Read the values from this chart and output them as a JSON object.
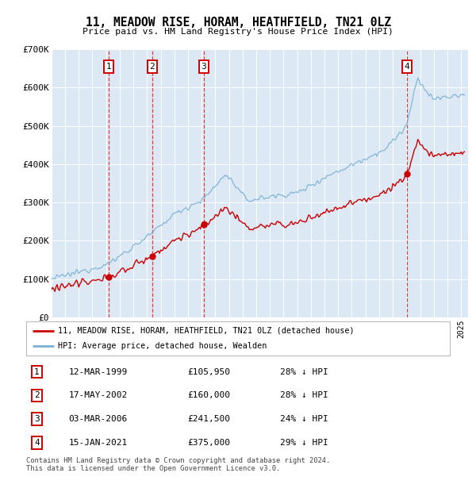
{
  "title": "11, MEADOW RISE, HORAM, HEATHFIELD, TN21 0LZ",
  "subtitle": "Price paid vs. HM Land Registry's House Price Index (HPI)",
  "background_color": "#dce9f5",
  "fig_bg_color": "#ffffff",
  "ylim": [
    0,
    700000
  ],
  "yticks": [
    0,
    100000,
    200000,
    300000,
    400000,
    500000,
    600000,
    700000
  ],
  "ytick_labels": [
    "£0",
    "£100K",
    "£200K",
    "£300K",
    "£400K",
    "£500K",
    "£600K",
    "£700K"
  ],
  "xlim_start": 1995.0,
  "xlim_end": 2025.5,
  "sale_dates": [
    1999.19,
    2002.37,
    2006.17,
    2021.04
  ],
  "sale_prices": [
    105950,
    160000,
    241500,
    375000
  ],
  "sale_labels": [
    "1",
    "2",
    "3",
    "4"
  ],
  "property_line_color": "#cc0000",
  "hpi_line_color": "#7ab0d4",
  "legend_property_label": "11, MEADOW RISE, HORAM, HEATHFIELD, TN21 0LZ (detached house)",
  "legend_hpi_label": "HPI: Average price, detached house, Wealden",
  "table_entries": [
    {
      "label": "1",
      "date": "12-MAR-1999",
      "price": "£105,950",
      "hpi": "28% ↓ HPI"
    },
    {
      "label": "2",
      "date": "17-MAY-2002",
      "price": "£160,000",
      "hpi": "28% ↓ HPI"
    },
    {
      "label": "3",
      "date": "03-MAR-2006",
      "price": "£241,500",
      "hpi": "24% ↓ HPI"
    },
    {
      "label": "4",
      "date": "15-JAN-2021",
      "price": "£375,000",
      "hpi": "29% ↓ HPI"
    }
  ],
  "footnote": "Contains HM Land Registry data © Crown copyright and database right 2024.\nThis data is licensed under the Open Government Licence v3.0."
}
